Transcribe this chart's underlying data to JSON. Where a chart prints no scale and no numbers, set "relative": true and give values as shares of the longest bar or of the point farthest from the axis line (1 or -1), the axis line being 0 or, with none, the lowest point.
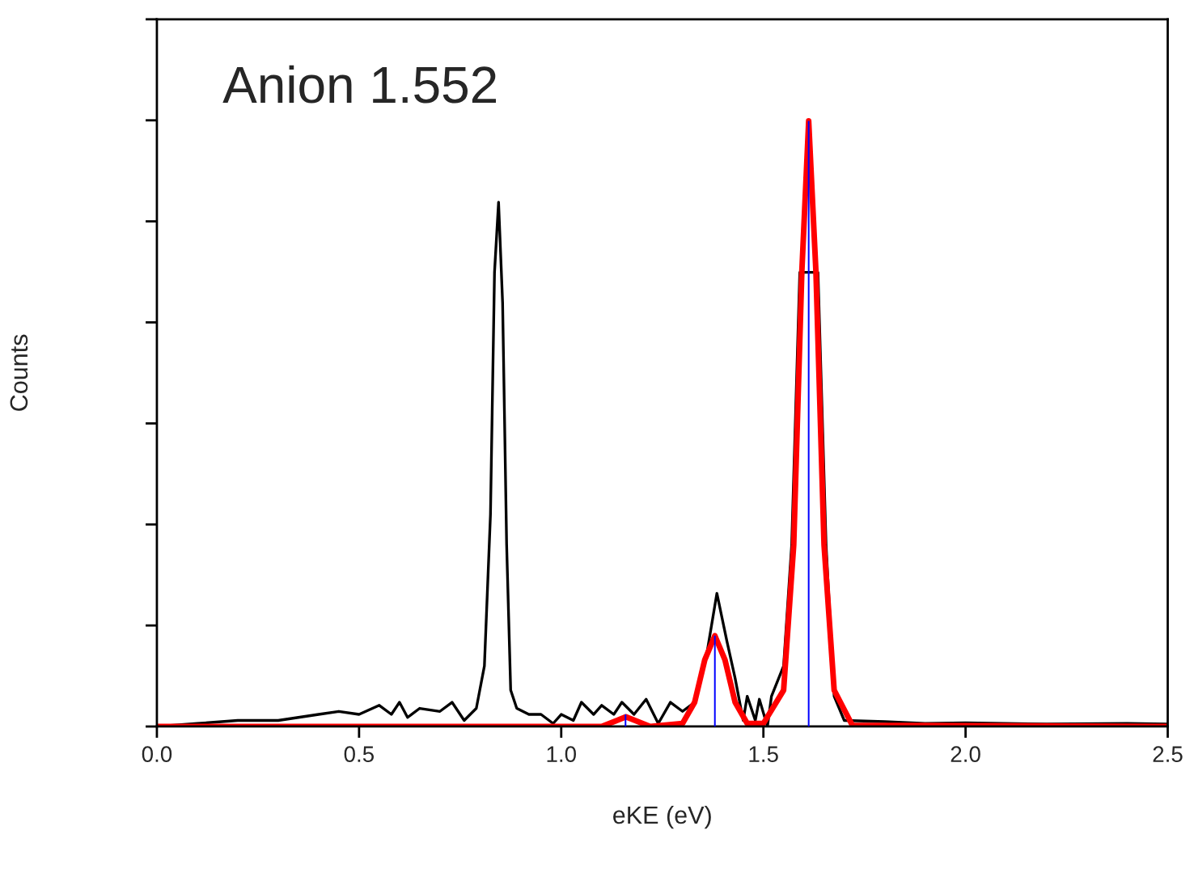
{
  "chart_data": {
    "type": "line",
    "title": "Anion 1.552",
    "xlabel": "eKE (eV)",
    "ylabel": "Counts",
    "relative": true,
    "xlim": [
      0,
      2.5
    ],
    "xticks": [
      {
        "value": 0,
        "label": "0.0"
      },
      {
        "value": 0.5,
        "label": "0.5"
      },
      {
        "value": 1,
        "label": "1.0"
      },
      {
        "value": 1.5,
        "label": "1.5"
      },
      {
        "value": 2,
        "label": "2.0"
      },
      {
        "value": 2.5,
        "label": "2.5"
      }
    ],
    "grid": false,
    "legend": false,
    "marker": "none",
    "line_style": "solid",
    "series": [
      {
        "color": "#000000",
        "x": [
          0.0,
          0.1,
          0.2,
          0.3,
          0.4,
          0.45,
          0.5,
          0.55,
          0.58,
          0.6,
          0.62,
          0.65,
          0.7,
          0.73,
          0.76,
          0.79,
          0.81,
          0.825,
          0.835,
          0.845,
          0.855,
          0.865,
          0.875,
          0.89,
          0.92,
          0.95,
          0.98,
          1.0,
          1.03,
          1.05,
          1.08,
          1.1,
          1.13,
          1.15,
          1.18,
          1.21,
          1.24,
          1.27,
          1.3,
          1.33,
          1.36,
          1.385,
          1.41,
          1.43,
          1.45,
          1.46,
          1.48,
          1.49,
          1.51,
          1.52,
          1.55,
          1.57,
          1.59,
          1.612,
          1.635,
          1.655,
          1.675,
          1.7,
          1.8,
          1.9,
          2.0,
          2.2,
          2.4,
          2.5
        ],
        "values": [
          0,
          0.005,
          0.01,
          0.01,
          0.02,
          0.025,
          0.02,
          0.035,
          0.02,
          0.04,
          0.015,
          0.03,
          0.025,
          0.04,
          0.01,
          0.03,
          0.1,
          0.35,
          0.75,
          0.866,
          0.7,
          0.3,
          0.06,
          0.03,
          0.02,
          0.02,
          0.005,
          0.02,
          0.01,
          0.04,
          0.02,
          0.035,
          0.02,
          0.04,
          0.02,
          0.045,
          0.005,
          0.04,
          0.025,
          0.04,
          0.12,
          0.22,
          0.14,
          0.08,
          0.01,
          0.05,
          0.01,
          0.045,
          0.0,
          0.05,
          0.1,
          0.3,
          0.75,
          null,
          0.75,
          0.3,
          0.05,
          0.01,
          0.008,
          0.005,
          0.006,
          0.004,
          0.005,
          0.004
        ]
      },
      {
        "type": "bar",
        "color": "#0000ff",
        "x": [
          1.159,
          1.38,
          1.612
        ],
        "values": [
          0.02,
          0.15,
          1.0
        ]
      },
      {
        "color": "#ff0000",
        "x": [
          0.0,
          1.1,
          1.16,
          1.22,
          1.3,
          1.33,
          1.355,
          1.38,
          1.405,
          1.43,
          1.46,
          1.5,
          1.55,
          1.575,
          1.595,
          1.612,
          1.63,
          1.65,
          1.675,
          1.72,
          2.5
        ],
        "values": [
          0,
          0,
          0.016,
          0,
          0.005,
          0.04,
          0.11,
          0.15,
          0.11,
          0.04,
          0.005,
          0.005,
          0.06,
          0.3,
          0.75,
          1.0,
          0.75,
          0.3,
          0.06,
          0.002,
          0
        ]
      }
    ]
  }
}
